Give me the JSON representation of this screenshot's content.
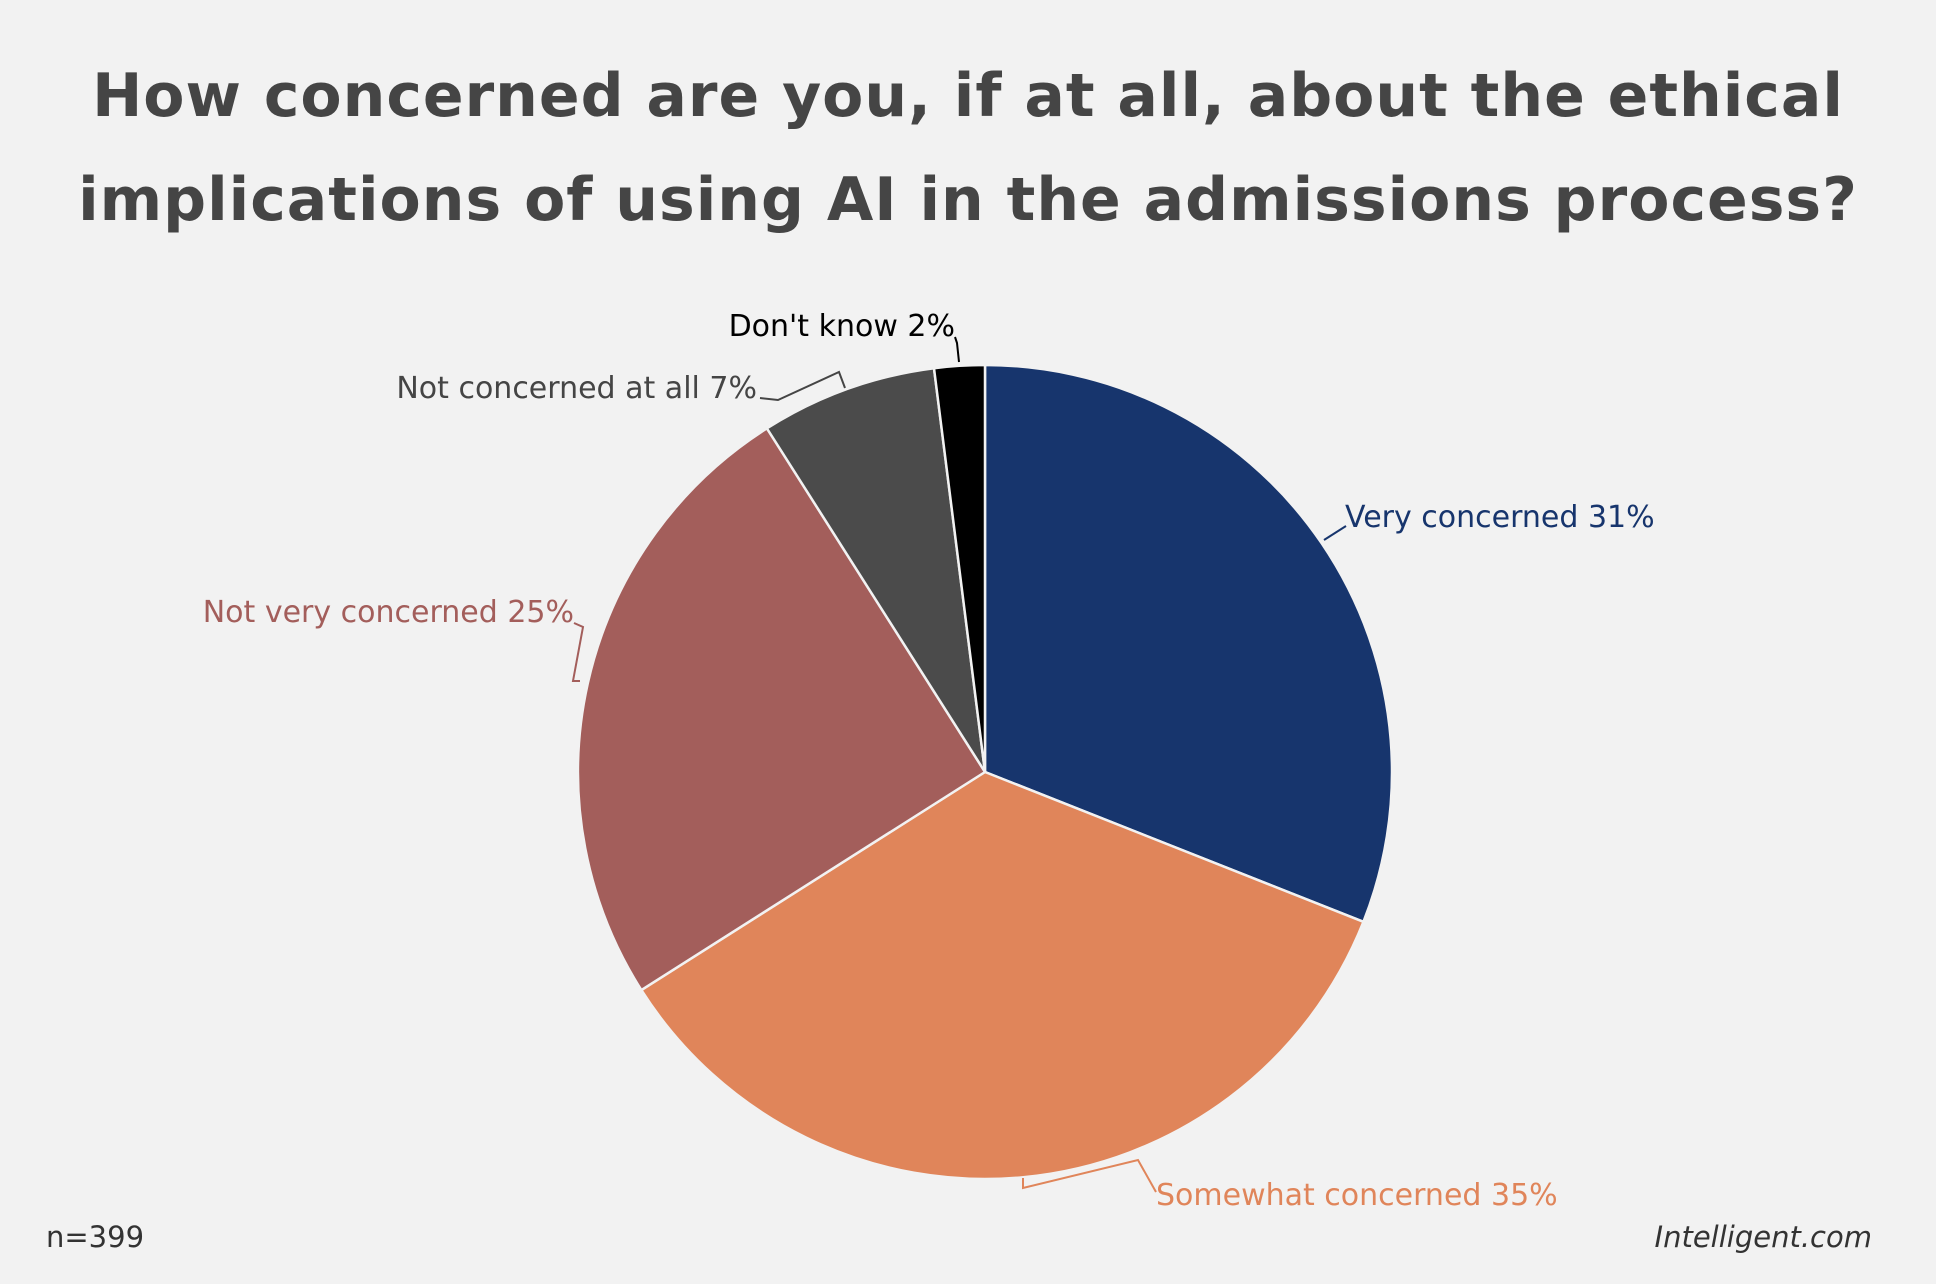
{
  "chart_data": {
    "type": "pie",
    "title_lines": [
      "How concerned are you, if at all, about the ethical",
      "implications of using AI in the admissions process?"
    ],
    "slices": [
      {
        "label": "Very concerned",
        "value": 31,
        "display": "Very concerned 31%",
        "color": "#17356d"
      },
      {
        "label": "Somewhat concerned",
        "value": 35,
        "display": "Somewhat concerned 35%",
        "color": "#e0855a"
      },
      {
        "label": "Not very concerned",
        "value": 25,
        "display": "Not very concerned 25%",
        "color": "#a35e5b"
      },
      {
        "label": "Not concerned at all",
        "value": 7,
        "display": "Not concerned at all 7%",
        "color": "#4b4b4b"
      },
      {
        "label": "Don't know",
        "value": 2,
        "display": "Don't know 2%",
        "color": "#000000"
      }
    ],
    "start_angle": "12 o'clock",
    "direction": "clockwise",
    "label_colors": [
      "#17356d",
      "#e0855a",
      "#a35e5b",
      "#454545",
      "#000000"
    ]
  },
  "footer": {
    "sample": "n=399",
    "brand": "Intelligent.com"
  }
}
